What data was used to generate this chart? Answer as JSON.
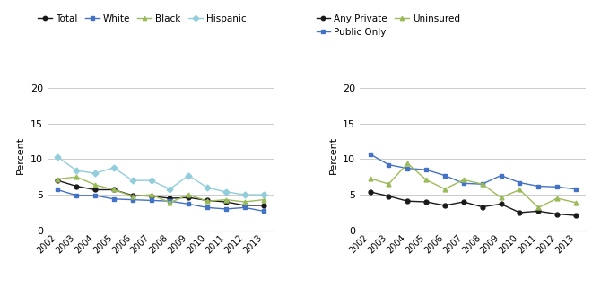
{
  "years": [
    2002,
    2003,
    2004,
    2005,
    2006,
    2007,
    2008,
    2009,
    2010,
    2011,
    2012,
    2013
  ],
  "chart1": {
    "Total": [
      7.0,
      6.2,
      5.7,
      5.7,
      4.9,
      4.8,
      4.5,
      4.6,
      4.2,
      4.0,
      3.5,
      3.5
    ],
    "White": [
      5.7,
      4.9,
      4.9,
      4.4,
      4.3,
      4.2,
      4.1,
      3.7,
      3.2,
      3.0,
      3.2,
      2.7
    ],
    "Black": [
      7.2,
      7.5,
      6.4,
      5.7,
      4.8,
      5.0,
      3.9,
      5.0,
      4.1,
      4.3,
      4.0,
      4.3
    ],
    "Hispanic": [
      10.3,
      8.4,
      8.0,
      8.8,
      7.0,
      7.0,
      5.8,
      7.7,
      6.0,
      5.4,
      5.0,
      5.0
    ]
  },
  "chart2": {
    "Any Private": [
      5.4,
      4.8,
      4.1,
      4.0,
      3.5,
      4.0,
      3.3,
      3.7,
      2.5,
      2.7,
      2.3,
      2.1
    ],
    "Public Only": [
      10.7,
      9.2,
      8.7,
      8.5,
      7.7,
      6.6,
      6.5,
      7.7,
      6.7,
      6.2,
      6.1,
      5.8
    ],
    "Uninsured": [
      7.3,
      6.5,
      9.4,
      7.1,
      5.8,
      7.1,
      6.5,
      4.6,
      5.7,
      3.2,
      4.5,
      3.9
    ]
  },
  "colors_chart1": {
    "Total": "#1a1a1a",
    "White": "#4472c4",
    "Black": "#9bbb59",
    "Hispanic": "#92cddc"
  },
  "colors_chart2": {
    "Any Private": "#1a1a1a",
    "Public Only": "#4472c4",
    "Uninsured": "#9bbb59"
  },
  "markers_chart1": {
    "Total": "o",
    "White": "s",
    "Black": "^",
    "Hispanic": "D"
  },
  "markers_chart2": {
    "Any Private": "o",
    "Public Only": "s",
    "Uninsured": "^"
  },
  "ylabel": "Percent",
  "ylim": [
    0,
    21
  ],
  "yticks": [
    0,
    5,
    10,
    15,
    20
  ],
  "background_color": "#ffffff"
}
